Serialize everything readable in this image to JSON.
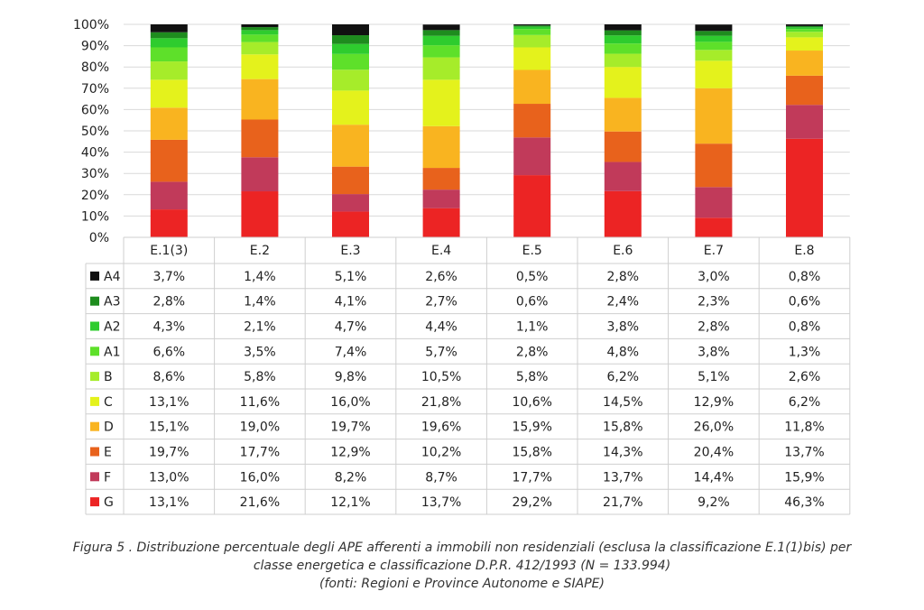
{
  "chart_data": {
    "type": "bar",
    "stacked": true,
    "percent": true,
    "categories": [
      "E.1(3)",
      "E.2",
      "E.3",
      "E.4",
      "E.5",
      "E.6",
      "E.7",
      "E.8"
    ],
    "y_ticks": [
      "0%",
      "10%",
      "20%",
      "30%",
      "40%",
      "50%",
      "60%",
      "70%",
      "80%",
      "90%",
      "100%"
    ],
    "ylim": [
      0,
      100
    ],
    "grid": true,
    "legend": "table",
    "series": [
      {
        "name": "A4",
        "color": "#111111",
        "values": [
          3.7,
          1.4,
          5.1,
          2.6,
          0.5,
          2.8,
          3.0,
          0.8
        ],
        "labels": [
          "3,7%",
          "1,4%",
          "5,1%",
          "2,6%",
          "0,5%",
          "2,8%",
          "3,0%",
          "0,8%"
        ]
      },
      {
        "name": "A3",
        "color": "#1e8c1e",
        "values": [
          2.8,
          1.4,
          4.1,
          2.7,
          0.6,
          2.4,
          2.3,
          0.6
        ],
        "labels": [
          "2,8%",
          "1,4%",
          "4,1%",
          "2,7%",
          "0,6%",
          "2,4%",
          "2,3%",
          "0,6%"
        ]
      },
      {
        "name": "A2",
        "color": "#2ecc2e",
        "values": [
          4.3,
          2.1,
          4.7,
          4.4,
          1.1,
          3.8,
          2.8,
          0.8
        ],
        "labels": [
          "4,3%",
          "2,1%",
          "4,7%",
          "4,4%",
          "1,1%",
          "3,8%",
          "2,8%",
          "0,8%"
        ]
      },
      {
        "name": "A1",
        "color": "#5ee02a",
        "values": [
          6.6,
          3.5,
          7.4,
          5.7,
          2.8,
          4.8,
          3.8,
          1.3
        ],
        "labels": [
          "6,6%",
          "3,5%",
          "7,4%",
          "5,7%",
          "2,8%",
          "4,8%",
          "3,8%",
          "1,3%"
        ]
      },
      {
        "name": "B",
        "color": "#a6ec2a",
        "values": [
          8.6,
          5.8,
          9.8,
          10.5,
          5.8,
          6.2,
          5.1,
          2.6
        ],
        "labels": [
          "8,6%",
          "5,8%",
          "9,8%",
          "10,5%",
          "5,8%",
          "6,2%",
          "5,1%",
          "2,6%"
        ]
      },
      {
        "name": "C",
        "color": "#e4f21c",
        "values": [
          13.1,
          11.6,
          16.0,
          21.8,
          10.6,
          14.5,
          12.9,
          6.2
        ],
        "labels": [
          "13,1%",
          "11,6%",
          "16,0%",
          "21,8%",
          "10,6%",
          "14,5%",
          "12,9%",
          "6,2%"
        ]
      },
      {
        "name": "D",
        "color": "#f9b420",
        "values": [
          15.1,
          19.0,
          19.7,
          19.6,
          15.9,
          15.8,
          26.0,
          11.8
        ],
        "labels": [
          "15,1%",
          "19,0%",
          "19,7%",
          "19,6%",
          "15,9%",
          "15,8%",
          "26,0%",
          "11,8%"
        ]
      },
      {
        "name": "E",
        "color": "#e8621c",
        "values": [
          19.7,
          17.7,
          12.9,
          10.2,
          15.8,
          14.3,
          20.4,
          13.7
        ],
        "labels": [
          "19,7%",
          "17,7%",
          "12,9%",
          "10,2%",
          "15,8%",
          "14,3%",
          "20,4%",
          "13,7%"
        ]
      },
      {
        "name": "F",
        "color": "#c13a5a",
        "values": [
          13.0,
          16.0,
          8.2,
          8.7,
          17.7,
          13.7,
          14.4,
          15.9
        ],
        "labels": [
          "13,0%",
          "16,0%",
          "8,2%",
          "8,7%",
          "17,7%",
          "13,7%",
          "14,4%",
          "15,9%"
        ]
      },
      {
        "name": "G",
        "color": "#ec2424",
        "values": [
          13.1,
          21.6,
          12.1,
          13.7,
          29.2,
          21.7,
          9.2,
          46.3
        ],
        "labels": [
          "13,1%",
          "21,6%",
          "12,1%",
          "13,7%",
          "29,2%",
          "21,7%",
          "9,2%",
          "46,3%"
        ]
      }
    ]
  },
  "caption": {
    "line1": "Figura 5  . Distribuzione percentuale degli APE afferenti a immobili non residenziali (esclusa la classificazione E.1(1)bis) per",
    "line2": "classe energetica e classificazione D.P.R. 412/1993 (N = 133.994)",
    "line3": "(fonti: Regioni e Province Autonome e SIAPE)"
  }
}
